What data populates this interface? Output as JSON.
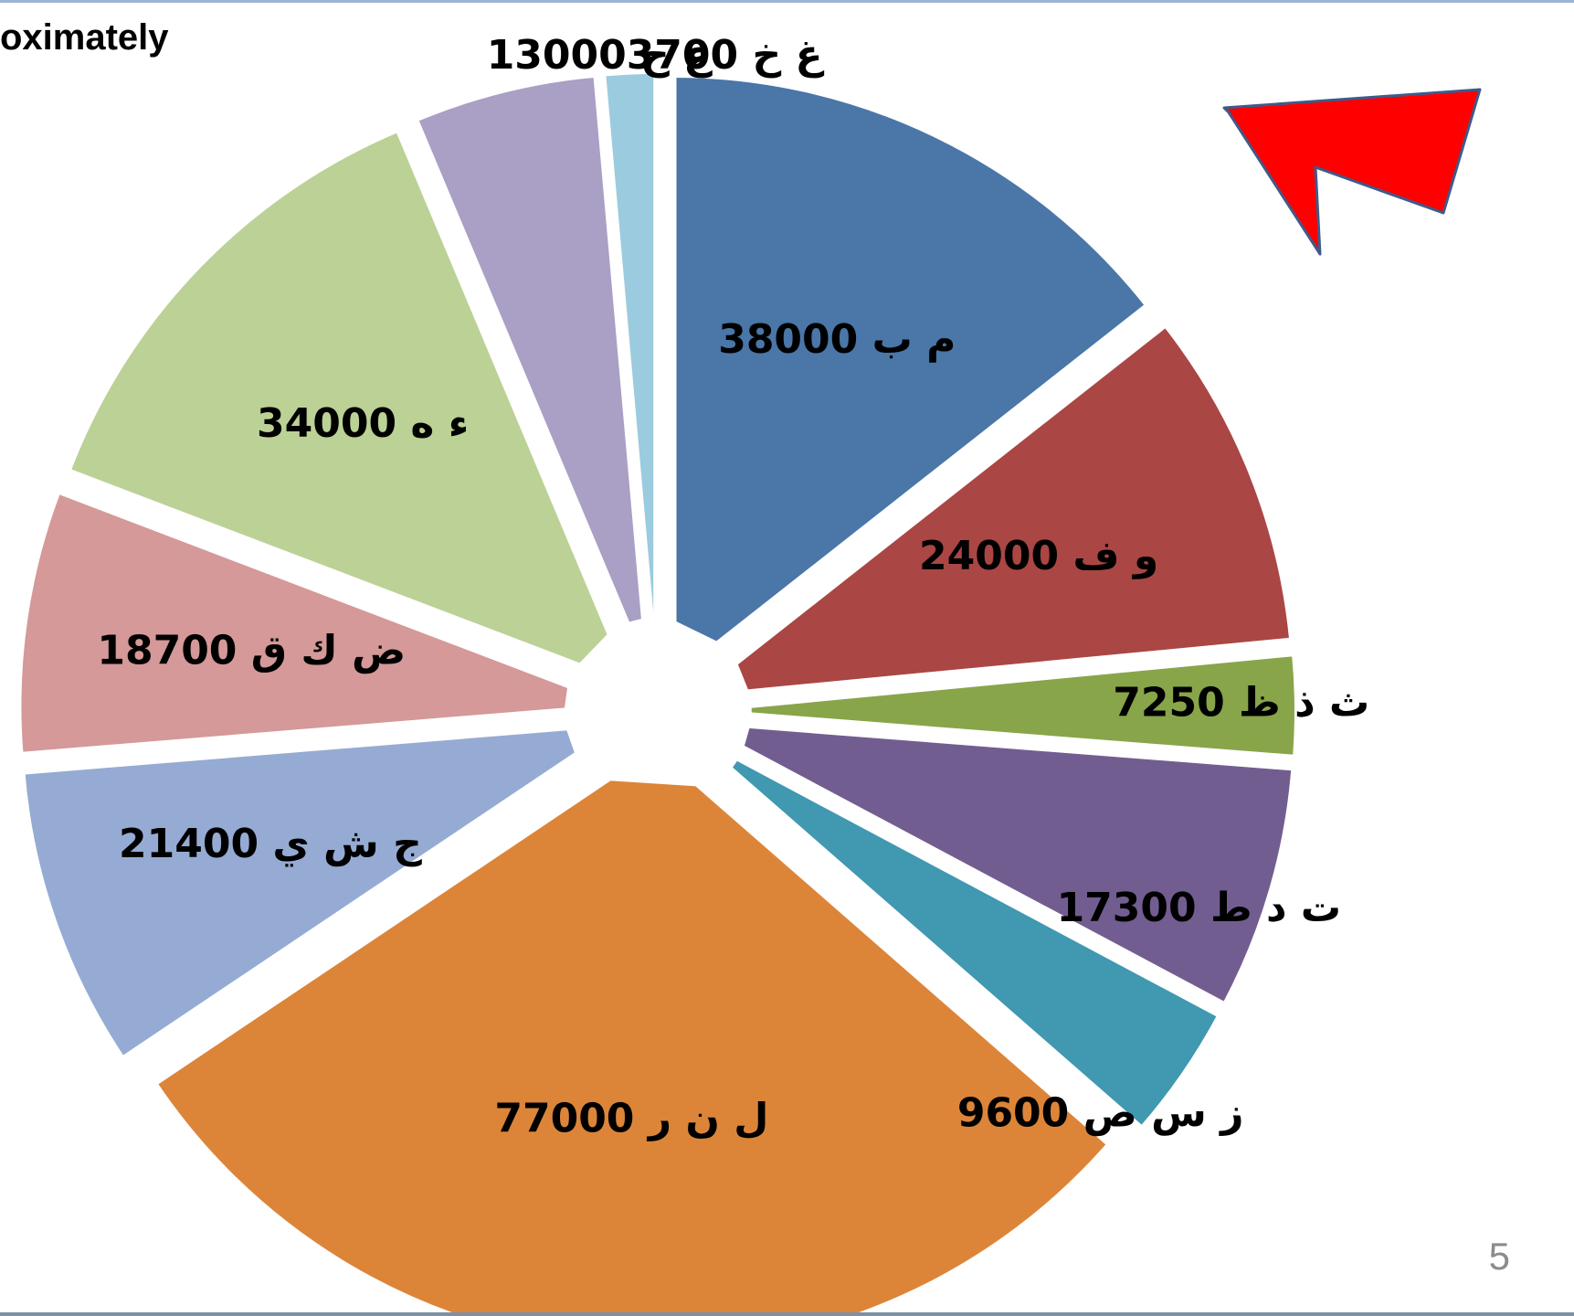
{
  "slide": {
    "title": "oximately",
    "page_number": "5"
  },
  "colors": {
    "arrow": "#ff0000",
    "arrow_outline": "#3f5a8a",
    "slide_border": "#9bb3d4"
  },
  "icons": {
    "pointer": "red-arrow-icon"
  },
  "chart_data": {
    "type": "pie",
    "exploded": true,
    "title": "",
    "slices": [
      {
        "label": "م ب 38000",
        "value": 38000,
        "color": "#4a76a8"
      },
      {
        "label": "و ف 24000",
        "value": 24000,
        "color": "#aa4644"
      },
      {
        "label": "ث ذ ظ 7250",
        "value": 7250,
        "color": "#88a54a"
      },
      {
        "label": "ت د ط 17300",
        "value": 17300,
        "color": "#725d91"
      },
      {
        "label": "ز س ص 9600",
        "value": 9600,
        "color": "#4098b1"
      },
      {
        "label": "ل ن ر 77000",
        "value": 77000,
        "color": "#dc8539"
      },
      {
        "label": "ج ش ي 21400",
        "value": 21400,
        "color": "#95abd3"
      },
      {
        "label": "ض ك ق 18700",
        "value": 18700,
        "color": "#d49998"
      },
      {
        "label": "ء ه 34000",
        "value": 34000,
        "color": "#bcd196"
      },
      {
        "label": "ع ح 13000",
        "value": 13000,
        "color": "#aa9fc4"
      },
      {
        "label": "غ خ 3700",
        "value": 3700,
        "color": "#9bcbde"
      }
    ]
  }
}
